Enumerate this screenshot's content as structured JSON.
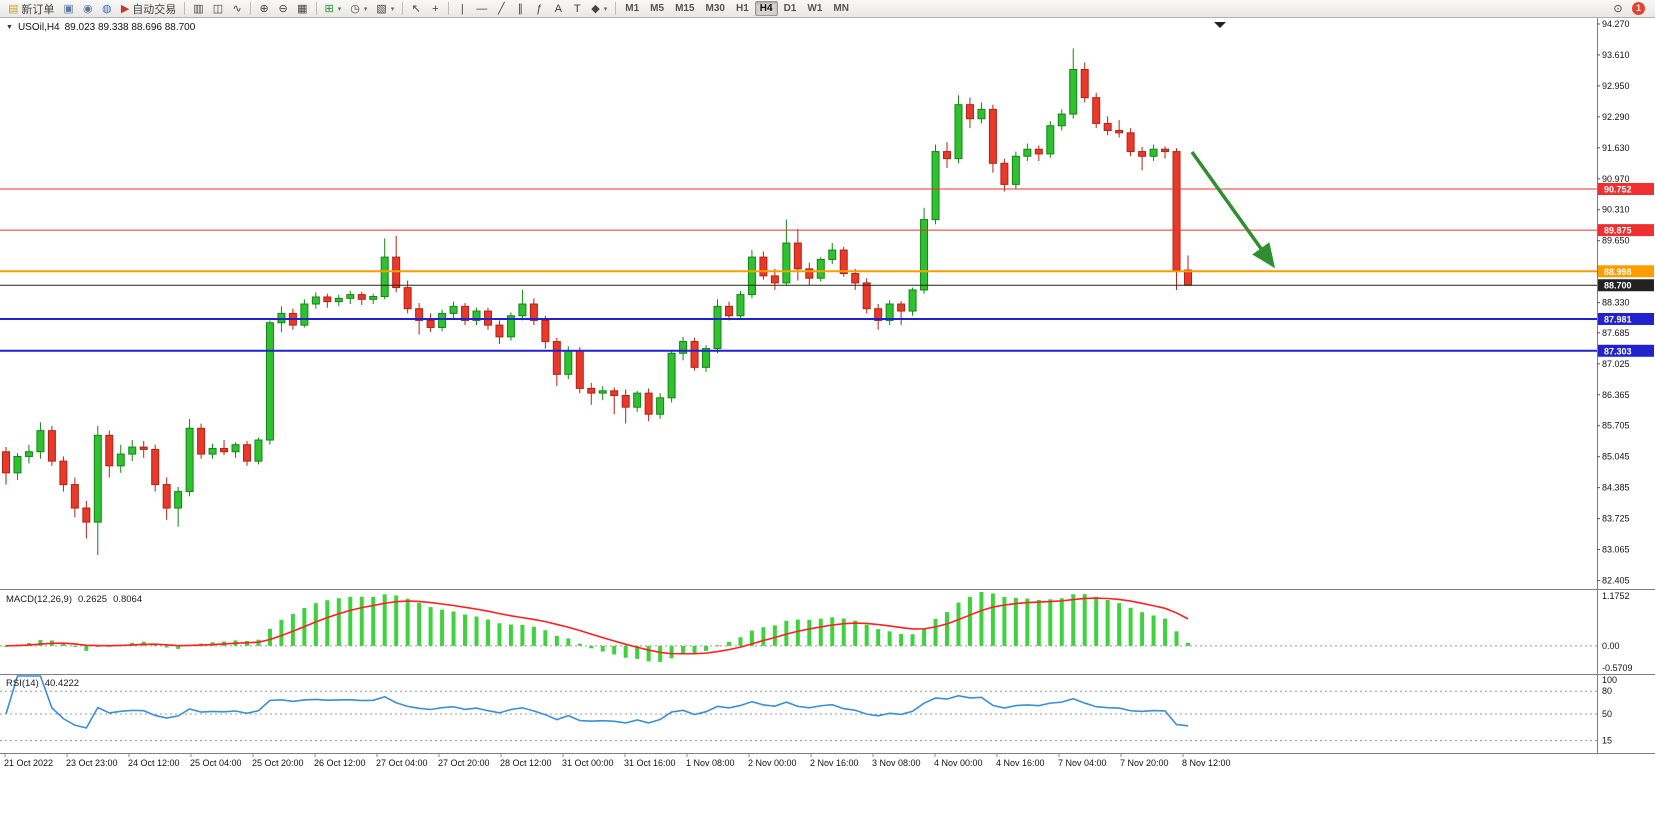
{
  "toolbar": {
    "timeframes": [
      "M1",
      "M5",
      "M15",
      "M30",
      "H1",
      "H4",
      "D1",
      "W1",
      "MN"
    ],
    "active_timeframe": "H4",
    "items": [
      {
        "t": "btn",
        "name": "new-order-button",
        "glyph": "▤",
        "glyph_color": "#c9a227",
        "label": "新订单"
      },
      {
        "t": "btn",
        "name": "print-button",
        "glyph": "▣",
        "glyph_color": "#5b7aa5"
      },
      {
        "t": "btn",
        "name": "print-preview-button",
        "glyph": "◉",
        "glyph_color": "#5b7aa5"
      },
      {
        "t": "btn",
        "name": "community-button",
        "glyph": "◍",
        "glyph_color": "#3a6fc4"
      },
      {
        "t": "btn",
        "name": "autotrading-button",
        "glyph": "▶",
        "glyph_color": "#c23a2e",
        "label": "自动交易"
      },
      {
        "t": "sep"
      },
      {
        "t": "btn",
        "name": "bar-chart-button",
        "glyph": "▥"
      },
      {
        "t": "btn",
        "name": "candlestick-chart-button",
        "glyph": "◫"
      },
      {
        "t": "btn",
        "name": "line-chart-button",
        "glyph": "∿"
      },
      {
        "t": "sep"
      },
      {
        "t": "btn",
        "name": "zoom-in-button",
        "glyph": "⊕"
      },
      {
        "t": "btn",
        "name": "zoom-out-button",
        "glyph": "⊖"
      },
      {
        "t": "btn",
        "name": "tile-windows-button",
        "glyph": "▦"
      },
      {
        "t": "sep"
      },
      {
        "t": "btn",
        "name": "indicators-button",
        "glyph": "⊞",
        "glyph_color": "#2d8f2d",
        "caret": true
      },
      {
        "t": "btn",
        "name": "periods-button",
        "glyph": "◷",
        "caret": true
      },
      {
        "t": "btn",
        "name": "templates-button",
        "glyph": "▧",
        "caret": true
      },
      {
        "t": "sep"
      },
      {
        "t": "btn",
        "name": "cursor-button",
        "glyph": "↖"
      },
      {
        "t": "btn",
        "name": "crosshair-button",
        "glyph": "+"
      },
      {
        "t": "sep"
      },
      {
        "t": "btn",
        "name": "vertical-line-button",
        "glyph": "|"
      },
      {
        "t": "btn",
        "name": "horizontal-line-button",
        "glyph": "—"
      },
      {
        "t": "btn",
        "name": "trendline-button",
        "glyph": "╱"
      },
      {
        "t": "btn",
        "name": "channel-button",
        "glyph": "∥"
      },
      {
        "t": "btn",
        "name": "fibonacci-button",
        "glyph": "ƒ"
      },
      {
        "t": "btn",
        "name": "text-button",
        "glyph": "A"
      },
      {
        "t": "btn",
        "name": "label-button",
        "glyph": "T"
      },
      {
        "t": "btn",
        "name": "shapes-button",
        "glyph": "◆",
        "caret": true
      },
      {
        "t": "sep"
      },
      {
        "t": "timeframes"
      },
      {
        "t": "spacer"
      },
      {
        "t": "btn",
        "name": "search-button",
        "glyph": "⊙"
      },
      {
        "t": "badge",
        "name": "notification-badge",
        "label": "1",
        "color": "#e8402a"
      }
    ]
  },
  "chart_data": {
    "type": "candlestick",
    "title_symbol": "USOil,H4",
    "title_ohlc": "89.023 89.338 88.696 88.700",
    "price_axis": {
      "labels": [
        "94.270",
        "93.610",
        "92.950",
        "92.290",
        "91.630",
        "90.970",
        "90.310",
        "89.650",
        "88.990",
        "88.330",
        "87.685",
        "87.025",
        "86.365",
        "85.705",
        "85.045",
        "84.385",
        "83.725",
        "83.065",
        "82.405"
      ]
    },
    "time_axis": [
      "21 Oct 2022",
      "23 Oct 23:00",
      "24 Oct 12:00",
      "25 Oct 04:00",
      "25 Oct 20:00",
      "26 Oct 12:00",
      "27 Oct 04:00",
      "27 Oct 20:00",
      "28 Oct 12:00",
      "31 Oct 00:00",
      "31 Oct 16:00",
      "1 Nov 08:00",
      "2 Nov 00:00",
      "2 Nov 16:00",
      "3 Nov 08:00",
      "4 Nov 00:00",
      "4 Nov 16:00",
      "7 Nov 04:00",
      "7 Nov 20:00",
      "8 Nov 12:00"
    ],
    "hlines": [
      {
        "price": 90.752,
        "label": "90.752",
        "color": "#ee3030",
        "width": 1
      },
      {
        "price": 89.875,
        "label": "89.875",
        "color": "#ee3030",
        "width": 1
      },
      {
        "price": 88.998,
        "label": "88.998",
        "color": "#ff9d00",
        "width": 2
      },
      {
        "price": 88.7,
        "label": "88.700",
        "color": "#222222",
        "width": 1
      },
      {
        "price": 87.981,
        "label": "87.981",
        "color": "#2222cc",
        "width": 2
      },
      {
        "price": 87.303,
        "label": "87.303",
        "color": "#2222cc",
        "width": 2
      }
    ],
    "arrow": {
      "from": [
        1192,
        134
      ],
      "to": [
        1272,
        246
      ],
      "color": "#2f8f2f"
    },
    "colors": {
      "up": "#2fc12f",
      "up_border": "#148514",
      "down": "#e8392a",
      "down_border": "#b22315"
    },
    "ohlc": [
      [
        85.15,
        85.25,
        84.45,
        84.7
      ],
      [
        84.7,
        85.12,
        84.55,
        85.05
      ],
      [
        85.05,
        85.3,
        84.9,
        85.15
      ],
      [
        85.15,
        85.78,
        85.0,
        85.6
      ],
      [
        85.6,
        85.7,
        84.85,
        84.95
      ],
      [
        84.95,
        85.05,
        84.3,
        84.45
      ],
      [
        84.45,
        84.6,
        83.75,
        83.95
      ],
      [
        83.95,
        84.1,
        83.3,
        83.65
      ],
      [
        83.65,
        85.7,
        82.95,
        85.5
      ],
      [
        85.5,
        85.6,
        84.6,
        84.85
      ],
      [
        84.85,
        85.3,
        84.7,
        85.1
      ],
      [
        85.1,
        85.4,
        84.95,
        85.25
      ],
      [
        85.25,
        85.38,
        85.02,
        85.2
      ],
      [
        85.2,
        85.3,
        84.3,
        84.45
      ],
      [
        84.45,
        84.6,
        83.7,
        83.95
      ],
      [
        83.95,
        84.4,
        83.55,
        84.3
      ],
      [
        84.3,
        85.85,
        84.2,
        85.65
      ],
      [
        85.65,
        85.75,
        85.0,
        85.1
      ],
      [
        85.1,
        85.32,
        85.0,
        85.22
      ],
      [
        85.22,
        85.4,
        85.08,
        85.15
      ],
      [
        85.15,
        85.35,
        85.02,
        85.3
      ],
      [
        85.3,
        85.38,
        84.85,
        84.95
      ],
      [
        84.95,
        85.45,
        84.88,
        85.4
      ],
      [
        85.4,
        87.95,
        85.3,
        87.9
      ],
      [
        87.9,
        88.25,
        87.7,
        88.1
      ],
      [
        88.1,
        88.2,
        87.75,
        87.85
      ],
      [
        87.85,
        88.4,
        87.8,
        88.3
      ],
      [
        88.3,
        88.55,
        88.2,
        88.45
      ],
      [
        88.45,
        88.52,
        88.22,
        88.35
      ],
      [
        88.35,
        88.5,
        88.25,
        88.42
      ],
      [
        88.42,
        88.58,
        88.3,
        88.5
      ],
      [
        88.5,
        88.56,
        88.28,
        88.4
      ],
      [
        88.4,
        88.52,
        88.3,
        88.46
      ],
      [
        88.46,
        89.7,
        88.4,
        89.3
      ],
      [
        89.3,
        89.75,
        88.55,
        88.65
      ],
      [
        88.65,
        88.8,
        88.1,
        88.2
      ],
      [
        88.2,
        88.32,
        87.65,
        87.95
      ],
      [
        87.95,
        88.1,
        87.7,
        87.8
      ],
      [
        87.8,
        88.18,
        87.72,
        88.1
      ],
      [
        88.1,
        88.35,
        88.0,
        88.25
      ],
      [
        88.25,
        88.32,
        87.85,
        87.95
      ],
      [
        87.95,
        88.22,
        87.85,
        88.15
      ],
      [
        88.15,
        88.22,
        87.75,
        87.85
      ],
      [
        87.85,
        87.95,
        87.45,
        87.6
      ],
      [
        87.6,
        88.12,
        87.52,
        88.05
      ],
      [
        88.05,
        88.6,
        87.95,
        88.3
      ],
      [
        88.3,
        88.42,
        87.85,
        87.95
      ],
      [
        87.95,
        88.05,
        87.35,
        87.5
      ],
      [
        87.5,
        87.58,
        86.55,
        86.8
      ],
      [
        86.8,
        87.4,
        86.7,
        87.3
      ],
      [
        87.3,
        87.38,
        86.4,
        86.5
      ],
      [
        86.5,
        86.62,
        86.15,
        86.4
      ],
      [
        86.4,
        86.55,
        86.25,
        86.45
      ],
      [
        86.45,
        86.52,
        85.95,
        86.35
      ],
      [
        86.35,
        86.48,
        85.75,
        86.1
      ],
      [
        86.1,
        86.45,
        86.0,
        86.4
      ],
      [
        86.4,
        86.5,
        85.8,
        85.95
      ],
      [
        85.95,
        86.4,
        85.85,
        86.3
      ],
      [
        86.3,
        87.32,
        86.2,
        87.25
      ],
      [
        87.25,
        87.6,
        87.1,
        87.5
      ],
      [
        87.5,
        87.58,
        86.88,
        86.95
      ],
      [
        86.95,
        87.42,
        86.85,
        87.35
      ],
      [
        87.35,
        88.4,
        87.25,
        88.25
      ],
      [
        88.25,
        88.35,
        87.95,
        88.05
      ],
      [
        88.05,
        88.58,
        87.98,
        88.5
      ],
      [
        88.5,
        89.45,
        88.42,
        89.3
      ],
      [
        89.3,
        89.42,
        88.82,
        88.9
      ],
      [
        88.9,
        89.05,
        88.6,
        88.75
      ],
      [
        88.75,
        90.1,
        88.68,
        89.6
      ],
      [
        89.6,
        89.9,
        88.8,
        89.05
      ],
      [
        89.05,
        89.18,
        88.7,
        88.85
      ],
      [
        88.85,
        89.3,
        88.78,
        89.25
      ],
      [
        89.25,
        89.6,
        89.15,
        89.45
      ],
      [
        89.45,
        89.52,
        88.88,
        88.95
      ],
      [
        88.95,
        89.05,
        88.6,
        88.75
      ],
      [
        88.75,
        88.85,
        88.1,
        88.2
      ],
      [
        88.2,
        88.3,
        87.75,
        87.95
      ],
      [
        87.95,
        88.38,
        87.85,
        88.3
      ],
      [
        88.3,
        88.36,
        87.85,
        88.15
      ],
      [
        88.15,
        88.65,
        88.05,
        88.6
      ],
      [
        88.6,
        90.35,
        88.52,
        90.1
      ],
      [
        90.1,
        91.7,
        90.0,
        91.55
      ],
      [
        91.55,
        91.75,
        91.2,
        91.4
      ],
      [
        91.4,
        92.75,
        91.3,
        92.55
      ],
      [
        92.55,
        92.7,
        92.05,
        92.25
      ],
      [
        92.25,
        92.6,
        92.15,
        92.45
      ],
      [
        92.45,
        92.55,
        91.1,
        91.3
      ],
      [
        91.3,
        91.4,
        90.7,
        90.85
      ],
      [
        90.85,
        91.55,
        90.75,
        91.45
      ],
      [
        91.45,
        91.72,
        91.35,
        91.6
      ],
      [
        91.6,
        91.68,
        91.35,
        91.5
      ],
      [
        91.5,
        92.2,
        91.42,
        92.1
      ],
      [
        92.1,
        92.45,
        92.0,
        92.35
      ],
      [
        92.35,
        93.75,
        92.25,
        93.3
      ],
      [
        93.3,
        93.45,
        92.6,
        92.7
      ],
      [
        92.7,
        92.8,
        92.05,
        92.15
      ],
      [
        92.15,
        92.3,
        91.9,
        92.0
      ],
      [
        92.0,
        92.22,
        91.85,
        91.95
      ],
      [
        91.95,
        92.05,
        91.45,
        91.55
      ],
      [
        91.55,
        91.65,
        91.15,
        91.45
      ],
      [
        91.45,
        91.7,
        91.35,
        91.6
      ],
      [
        91.6,
        91.66,
        91.4,
        91.55
      ],
      [
        91.55,
        91.62,
        88.6,
        89.02
      ],
      [
        89.023,
        89.338,
        88.696,
        88.7
      ]
    ],
    "indicators": {
      "macd": {
        "label": "MACD(12,26,9)",
        "value": "0.2625",
        "signal_value": "0.8064",
        "params": {
          "fast": 12,
          "slow": 26,
          "signal": 9
        },
        "axis_labels": [
          "1.1752",
          "0.00",
          "-0.5709"
        ],
        "hist_color": "#3fd23f",
        "signal_color": "#ff2020"
      },
      "rsi": {
        "label": "RSI(14)",
        "value": "40.4222",
        "period": 14,
        "levels": [
          80,
          50,
          15
        ],
        "axis_labels": [
          "100",
          "80",
          "50",
          "15"
        ],
        "line_color": "#3a8fd9"
      }
    }
  }
}
